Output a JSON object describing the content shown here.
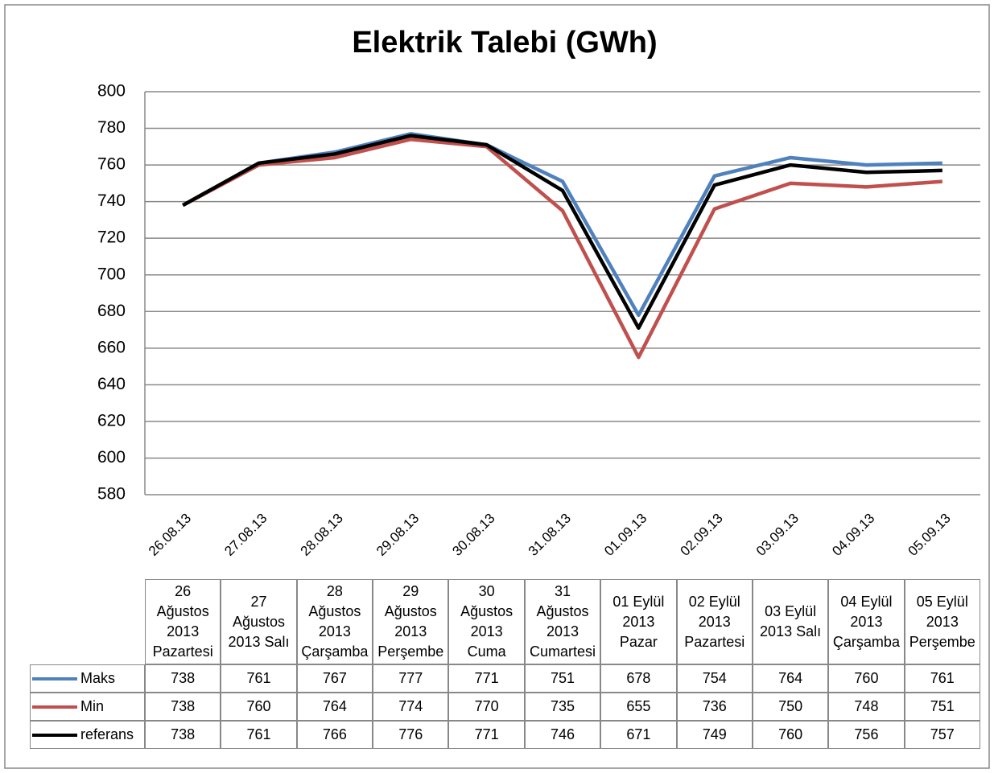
{
  "chart_data": {
    "type": "line",
    "title": "Elektrik Talebi (GWh)",
    "categories": [
      "26.08.13",
      "27.08.13",
      "28.08.13",
      "29.08.13",
      "30.08.13",
      "31.08.13",
      "01.09.13",
      "02.09.13",
      "03.09.13",
      "04.09.13",
      "05.09.13"
    ],
    "table_headers": [
      "26 Ağustos 2013 Pazartesi",
      "27 Ağustos 2013 Salı",
      "28 Ağustos 2013 Çarşamba",
      "29 Ağustos 2013 Perşembe",
      "30 Ağustos 2013 Cuma",
      "31 Ağustos 2013 Cumartesi",
      "01 Eylül 2013 Pazar",
      "02 Eylül 2013 Pazartesi",
      "03 Eylül 2013 Salı",
      "04 Eylül 2013 Çarşamba",
      "05 Eylül 2013 Perşembe"
    ],
    "series": [
      {
        "name": "Maks",
        "color": "#4f81bd",
        "values": [
          738,
          761,
          767,
          777,
          771,
          751,
          678,
          754,
          764,
          760,
          761
        ]
      },
      {
        "name": "Min",
        "color": "#c0504d",
        "values": [
          738,
          760,
          764,
          774,
          770,
          735,
          655,
          736,
          750,
          748,
          751
        ]
      },
      {
        "name": "referans",
        "color": "#000000",
        "values": [
          738,
          761,
          766,
          776,
          771,
          746,
          671,
          749,
          760,
          756,
          757
        ]
      }
    ],
    "ylim": [
      580,
      800
    ],
    "yticks": [
      580,
      600,
      620,
      640,
      660,
      680,
      700,
      720,
      740,
      760,
      780,
      800
    ],
    "grid": true
  }
}
